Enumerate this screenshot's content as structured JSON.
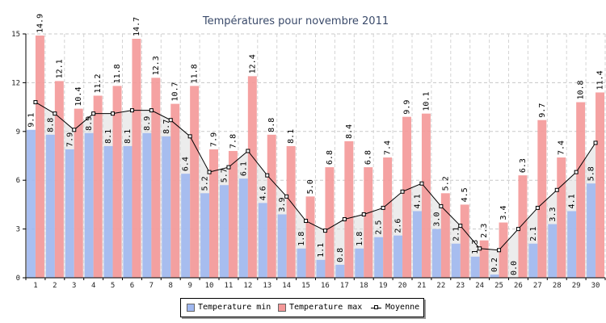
{
  "chart_data": {
    "type": "bar",
    "title": "Températures pour novembre 2011",
    "categories": [
      "1",
      "2",
      "3",
      "4",
      "5",
      "6",
      "7",
      "8",
      "9",
      "10",
      "11",
      "12",
      "13",
      "14",
      "15",
      "16",
      "17",
      "18",
      "19",
      "20",
      "21",
      "22",
      "23",
      "24",
      "25",
      "26",
      "27",
      "28",
      "29",
      "30"
    ],
    "ylim": [
      0,
      15
    ],
    "yticks": [
      0,
      3,
      6,
      9,
      12,
      15
    ],
    "grid": true,
    "legend_position": "bottom",
    "series": [
      {
        "name": "Temperature min",
        "color": "#a0b8f0",
        "values": [
          9.1,
          8.8,
          7.9,
          8.9,
          8.1,
          8.1,
          8.9,
          8.7,
          6.4,
          5.2,
          5.7,
          6.1,
          4.6,
          3.9,
          1.8,
          1.1,
          0.8,
          1.8,
          2.5,
          2.6,
          4.1,
          3.0,
          2.1,
          1.3,
          0.2,
          0.0,
          2.1,
          3.3,
          4.1,
          5.8
        ]
      },
      {
        "name": "Temperature max",
        "color": "#f49898",
        "values": [
          14.9,
          12.1,
          10.4,
          11.2,
          11.8,
          14.7,
          12.3,
          10.7,
          11.8,
          7.9,
          7.8,
          12.4,
          8.8,
          8.1,
          5.0,
          6.8,
          8.4,
          6.8,
          7.4,
          9.9,
          10.1,
          5.2,
          4.5,
          2.3,
          3.4,
          6.3,
          9.7,
          7.4,
          10.8,
          11.4
        ]
      },
      {
        "name": "Moyenne",
        "type": "line",
        "color": "#000000",
        "values": [
          10.8,
          10.1,
          9.1,
          10.1,
          10.1,
          10.3,
          10.3,
          9.7,
          8.7,
          6.5,
          6.8,
          7.8,
          6.3,
          5.0,
          3.5,
          2.9,
          3.6,
          3.9,
          4.3,
          5.3,
          5.8,
          4.4,
          3.2,
          1.8,
          1.7,
          3.0,
          4.3,
          5.4,
          6.5,
          8.3
        ]
      }
    ]
  }
}
